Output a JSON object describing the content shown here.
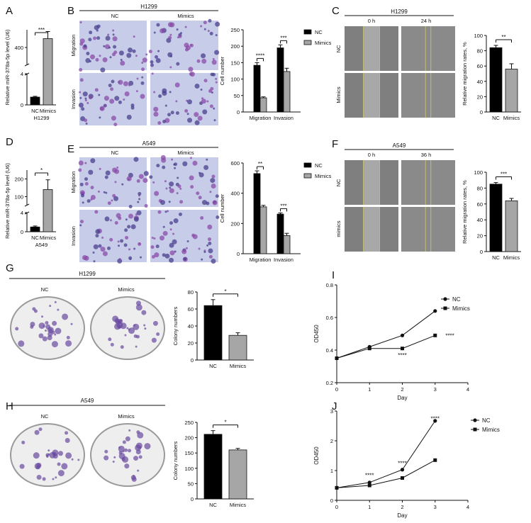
{
  "figure": {
    "panel_letters": [
      "A",
      "B",
      "C",
      "D",
      "E",
      "F",
      "G",
      "H",
      "I",
      "J"
    ],
    "cell_lines": {
      "h1299": "H1299",
      "a549": "A549"
    },
    "conditions": {
      "nc": "NC",
      "mimics": "Mimics",
      "mimics_lower": "mimics"
    },
    "assays": {
      "migration": "Migration",
      "invasion": "Invasion"
    },
    "timepoints": {
      "t0": "0 h",
      "t24": "24 h",
      "t36": "36 h"
    },
    "colors": {
      "nc": "#000000",
      "mimics": "#a6a6a6"
    }
  },
  "chart_data": [
    {
      "panel": "A",
      "type": "bar",
      "categories": [
        "NC",
        "Mimics"
      ],
      "values": [
        1,
        450
      ],
      "errors": [
        0.1,
        40
      ],
      "ylabel": "Relative miR-378a-5p level (U6)",
      "xlabel": "H1299",
      "axis_break": [
        4,
        300
      ],
      "ytick_labels": [
        "0",
        "4",
        "400"
      ],
      "significance": "***"
    },
    {
      "panel": "B",
      "type": "bar",
      "title": "H1299",
      "categories": [
        "Migration",
        "Invasion"
      ],
      "series": [
        {
          "name": "NC",
          "values": [
            142,
            195
          ],
          "errors": [
            8,
            9
          ]
        },
        {
          "name": "Mimics",
          "values": [
            43,
            123
          ],
          "errors": [
            3,
            10
          ]
        }
      ],
      "ylabel": "Cell number",
      "ylim": [
        0,
        250
      ],
      "yticks": [
        "0",
        "50",
        "100",
        "150",
        "200",
        "250"
      ],
      "significance": [
        "****",
        "***"
      ]
    },
    {
      "panel": "C",
      "type": "bar",
      "title": "H1299",
      "categories": [
        "NC",
        "Mimics"
      ],
      "values": [
        84,
        56
      ],
      "errors": [
        3,
        7
      ],
      "ylabel": "Relative migration rates, %",
      "ylim": [
        0,
        100
      ],
      "yticks": [
        "0",
        "20",
        "40",
        "60",
        "80",
        "100"
      ],
      "significance": "**"
    },
    {
      "panel": "D",
      "type": "bar",
      "categories": [
        "NC",
        "Mimics"
      ],
      "values": [
        1,
        140
      ],
      "errors": [
        0.2,
        55
      ],
      "ylabel": "Relative miR-378a-5p level (U6)",
      "xlabel": "A549",
      "axis_break": [
        4,
        50
      ],
      "ytick_labels": [
        "0",
        "4",
        "100",
        "200"
      ],
      "significance": "*"
    },
    {
      "panel": "E",
      "type": "bar",
      "title": "A549",
      "categories": [
        "Migration",
        "Invasion"
      ],
      "series": [
        {
          "name": "NC",
          "values": [
            530,
            262
          ],
          "errors": [
            18,
            8
          ]
        },
        {
          "name": "Mimics",
          "values": [
            310,
            120
          ],
          "errors": [
            10,
            15
          ]
        }
      ],
      "ylabel": "Cell number",
      "ylim": [
        0,
        600
      ],
      "yticks": [
        "0",
        "200",
        "400",
        "600"
      ],
      "significance": [
        "**",
        "***"
      ]
    },
    {
      "panel": "F",
      "type": "bar",
      "title": "A549",
      "categories": [
        "NC",
        "Mimics"
      ],
      "values": [
        85,
        64
      ],
      "errors": [
        2,
        3
      ],
      "ylabel": "Relative migration rates, %",
      "ylim": [
        0,
        100
      ],
      "yticks": [
        "0",
        "20",
        "40",
        "60",
        "80",
        "100"
      ],
      "significance": "***"
    },
    {
      "panel": "G",
      "type": "bar",
      "title": "H1299",
      "categories": [
        "NC",
        "Mimics"
      ],
      "values": [
        64,
        29
      ],
      "errors": [
        7,
        3
      ],
      "ylabel": "Colony numbers",
      "ylim": [
        0,
        80
      ],
      "yticks": [
        "0",
        "20",
        "40",
        "60",
        "80"
      ],
      "significance": "*"
    },
    {
      "panel": "H",
      "type": "bar",
      "title": "A549",
      "categories": [
        "NC",
        "Mimics"
      ],
      "values": [
        211,
        160
      ],
      "errors": [
        12,
        5
      ],
      "ylabel": "Colony numbers",
      "ylim": [
        0,
        250
      ],
      "yticks": [
        "0",
        "50",
        "100",
        "150",
        "200",
        "250"
      ],
      "significance": "*"
    },
    {
      "panel": "I",
      "type": "line",
      "x": [
        0,
        1,
        2,
        3
      ],
      "series": [
        {
          "name": "NC",
          "marker": "circle",
          "values": [
            0.35,
            0.42,
            0.49,
            0.64
          ]
        },
        {
          "name": "Mimics",
          "marker": "square",
          "values": [
            0.35,
            0.41,
            0.41,
            0.49
          ]
        }
      ],
      "xlabel": "Day",
      "ylabel": "OD450",
      "xlim": [
        0,
        4
      ],
      "ylim": [
        0.2,
        0.8
      ],
      "xticks": [
        "0",
        "1",
        "2",
        "3",
        "4"
      ],
      "yticks": [
        "0.2",
        "0.4",
        "0.6",
        "0.8"
      ],
      "annotations": [
        {
          "x": 2,
          "y": 0.37,
          "text": "****"
        },
        {
          "x": 3.45,
          "y": 0.49,
          "text": "****"
        }
      ],
      "legend": "top-right"
    },
    {
      "panel": "J",
      "type": "line",
      "x": [
        0,
        1,
        2,
        3
      ],
      "series": [
        {
          "name": "NC",
          "marker": "circle",
          "values": [
            0.42,
            0.6,
            1.03,
            2.67
          ]
        },
        {
          "name": "Mimics",
          "marker": "square",
          "values": [
            0.42,
            0.5,
            0.75,
            1.35
          ]
        }
      ],
      "xlabel": "Day",
      "ylabel": "OD450",
      "xlim": [
        0,
        4
      ],
      "ylim": [
        0,
        3
      ],
      "xticks": [
        "0",
        "1",
        "2",
        "3",
        "4"
      ],
      "yticks": [
        "0",
        "1",
        "2",
        "3"
      ],
      "annotations": [
        {
          "x": 1,
          "y": 0.85,
          "text": "****"
        },
        {
          "x": 2,
          "y": 1.25,
          "text": "****"
        },
        {
          "x": 3,
          "y": 2.75,
          "text": "****"
        }
      ],
      "legend": "top-right"
    }
  ]
}
